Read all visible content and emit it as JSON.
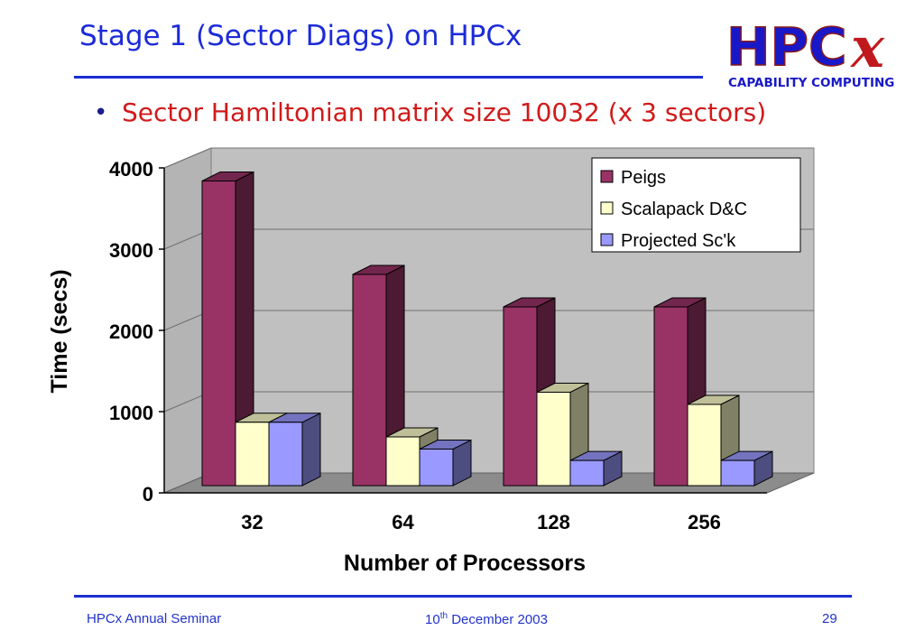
{
  "slide": {
    "title": "Stage 1 (Sector Diags) on HPCx",
    "bullet": "•",
    "subtitle": "Sector Hamiltonian matrix size 10032 (x 3 sectors)"
  },
  "logo": {
    "main": "HPC",
    "accent": "x",
    "tagline": "CAPABILITY COMPUTING"
  },
  "footer": {
    "left": "HPCx Annual Seminar",
    "date_day": "10",
    "date_suffix": "th",
    "date_rest": " December 2003",
    "page": "29"
  },
  "colors": {
    "accent_blue": "#1a2fd0",
    "subtitle_red": "#d11a1a"
  },
  "chart_data": {
    "type": "bar",
    "style": "3d-clustered",
    "categories": [
      "32",
      "64",
      "128",
      "256"
    ],
    "series": [
      {
        "name": "Peigs",
        "values": [
          3750,
          2600,
          2200,
          2200
        ],
        "color": "#993366"
      },
      {
        "name": "Scalapack D&C",
        "values": [
          780,
          600,
          1150,
          1000
        ],
        "color": "#ffffcc"
      },
      {
        "name": "Projected Sc'k",
        "values": [
          780,
          450,
          310,
          310
        ],
        "color": "#9999ff"
      }
    ],
    "ylabel": "Time (secs)",
    "xlabel": "Number of Processors",
    "ylim": [
      0,
      4000
    ],
    "yticks": [
      0,
      1000,
      2000,
      3000,
      4000
    ],
    "grid": true,
    "legend_position": "top-right"
  }
}
